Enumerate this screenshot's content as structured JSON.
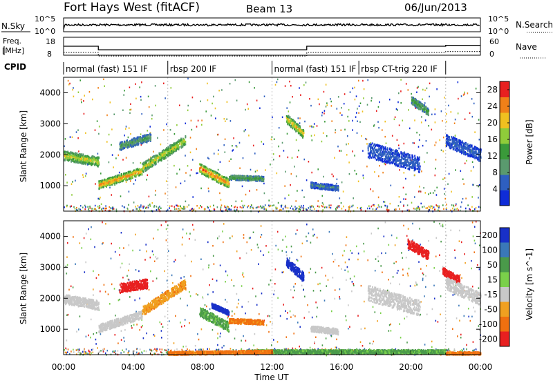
{
  "header": {
    "title": "Fort Hays West (fitACF)",
    "beam": "Beam 13",
    "date": "06/Jun/2013"
  },
  "aux_panels": {
    "nsky_label": "N.Sky",
    "nsearch_label": "N.Search",
    "noise_ticks_left": [
      "10^5",
      "10^0"
    ],
    "noise_ticks_right": [
      "10^5",
      "10^0"
    ],
    "freq_label": "Freq.",
    "freq_unit": "[MHz]",
    "freq_ticks": [
      "18",
      "8"
    ],
    "nave_label": "Nave",
    "nave_ticks": [
      "60",
      "0"
    ],
    "cpid_label": "CPID",
    "freq_steps": [
      {
        "start": 0,
        "end": 2,
        "value": 13
      },
      {
        "start": 2,
        "end": 14,
        "value": 11
      },
      {
        "start": 14,
        "end": 22,
        "value": 13
      },
      {
        "start": 22,
        "end": 24,
        "value": 13.5
      }
    ],
    "cpid_modes": [
      {
        "start": 0,
        "end": 6,
        "label": "normal (fast) 151 IF"
      },
      {
        "start": 6,
        "end": 12,
        "label": "rbsp 200 IF"
      },
      {
        "start": 12,
        "end": 17,
        "label": "normal (fast) 151 IF"
      },
      {
        "start": 17,
        "end": 22,
        "label": "rbsp CT-trig 220 IF"
      }
    ]
  },
  "chart_data": [
    {
      "type": "heatmap",
      "name": "power",
      "xlabel": "",
      "ylabel": "Slant Range [km]",
      "xlim": [
        0,
        24
      ],
      "ylim": [
        180,
        4500
      ],
      "yticks": [
        "1000",
        "2000",
        "3000",
        "4000"
      ],
      "colorbar_label": "Power [dB]",
      "colorbar_ticks": [
        "4",
        "8",
        "12",
        "16",
        "20",
        "24",
        "28"
      ],
      "colorbar_range": [
        0,
        30
      ],
      "colorbar_colors": [
        "#0f2cd8",
        "#2e5fc0",
        "#5a9a6e",
        "#3a9a3a",
        "#8fcc3a",
        "#f0c020",
        "#f08018",
        "#e82020"
      ],
      "features": [
        {
          "t0": 0.0,
          "t1": 2.0,
          "r0": 2000,
          "r1": 1800,
          "w": 300,
          "p": 20
        },
        {
          "t0": 2.0,
          "t1": 4.5,
          "r0": 1050,
          "r1": 1500,
          "w": 250,
          "p": 25
        },
        {
          "t0": 4.5,
          "t1": 7.0,
          "r0": 1600,
          "r1": 2500,
          "w": 300,
          "p": 20
        },
        {
          "t0": 3.2,
          "t1": 5.0,
          "r0": 2300,
          "r1": 2600,
          "w": 250,
          "p": 12
        },
        {
          "t0": 7.8,
          "t1": 9.5,
          "r0": 1600,
          "r1": 1100,
          "w": 300,
          "p": 26
        },
        {
          "t0": 9.5,
          "t1": 11.5,
          "r0": 1300,
          "r1": 1250,
          "w": 150,
          "p": 14
        },
        {
          "t0": 12.8,
          "t1": 13.8,
          "r0": 3200,
          "r1": 2700,
          "w": 300,
          "p": 22
        },
        {
          "t0": 14.2,
          "t1": 15.8,
          "r0": 1050,
          "r1": 950,
          "w": 180,
          "p": 8
        },
        {
          "t0": 17.5,
          "t1": 20.5,
          "r0": 2200,
          "r1": 1700,
          "w": 500,
          "p": 6
        },
        {
          "t0": 20.0,
          "t1": 21.0,
          "r0": 3800,
          "r1": 3400,
          "w": 250,
          "p": 14
        },
        {
          "t0": 22.0,
          "t1": 24.0,
          "r0": 2500,
          "r1": 2000,
          "w": 400,
          "p": 6
        }
      ]
    },
    {
      "type": "heatmap",
      "name": "velocity",
      "xlabel": "Time UT",
      "ylabel": "Slant Range [km]",
      "xlim": [
        0,
        24
      ],
      "ylim": [
        180,
        4500
      ],
      "xticks": [
        "00:00",
        "04:00",
        "08:00",
        "12:00",
        "16:00",
        "20:00",
        "00:00"
      ],
      "yticks": [
        "1000",
        "2000",
        "3000",
        "4000"
      ],
      "colorbar_label": "Velocity [m s^-1]",
      "colorbar_ticks": [
        "200",
        "100",
        "50",
        "15",
        "-15",
        "-50",
        "-100",
        "-200"
      ],
      "colorbar_colors": [
        "#1830c8",
        "#3a78b8",
        "#4a9a4a",
        "#7ad04a",
        "#c8c8c8",
        "#f0a020",
        "#f07010",
        "#e82020"
      ],
      "features": [
        {
          "t0": 0.0,
          "t1": 2.0,
          "r0": 2000,
          "r1": 1800,
          "w": 300,
          "v": 0
        },
        {
          "t0": 2.0,
          "t1": 4.5,
          "r0": 1050,
          "r1": 1500,
          "w": 250,
          "v": 0
        },
        {
          "t0": 3.2,
          "t1": 4.8,
          "r0": 2350,
          "r1": 2500,
          "w": 300,
          "v": -220
        },
        {
          "t0": 4.5,
          "t1": 7.0,
          "r0": 1600,
          "r1": 2500,
          "w": 300,
          "v": -40
        },
        {
          "t0": 7.8,
          "t1": 9.5,
          "r0": 1600,
          "r1": 1100,
          "w": 300,
          "v": 40
        },
        {
          "t0": 8.5,
          "t1": 9.5,
          "r0": 1800,
          "r1": 1550,
          "w": 150,
          "v": 220
        },
        {
          "t0": 9.5,
          "t1": 11.5,
          "r0": 1300,
          "r1": 1250,
          "w": 150,
          "v": -60
        },
        {
          "t0": 12.8,
          "t1": 13.8,
          "r0": 3200,
          "r1": 2700,
          "w": 300,
          "v": 220
        },
        {
          "t0": 14.2,
          "t1": 15.8,
          "r0": 1050,
          "r1": 950,
          "w": 180,
          "v": 0
        },
        {
          "t0": 17.5,
          "t1": 20.5,
          "r0": 2200,
          "r1": 1700,
          "w": 500,
          "v": 0
        },
        {
          "t0": 19.8,
          "t1": 21.0,
          "r0": 3800,
          "r1": 3400,
          "w": 300,
          "v": -220
        },
        {
          "t0": 21.8,
          "t1": 22.8,
          "r0": 2900,
          "r1": 2600,
          "w": 250,
          "v": -220
        },
        {
          "t0": 22.0,
          "t1": 24.0,
          "r0": 2500,
          "r1": 2000,
          "w": 400,
          "v": 0
        },
        {
          "t0": 10.5,
          "t1": 22.0,
          "r0": 300,
          "r1": 300,
          "w": 120,
          "v": 40
        },
        {
          "t0": 6.0,
          "t1": 12.0,
          "r0": 250,
          "r1": 300,
          "w": 100,
          "v": -60
        },
        {
          "t0": 22.0,
          "t1": 24.0,
          "r0": 250,
          "r1": 250,
          "w": 80,
          "v": -60
        }
      ]
    }
  ]
}
